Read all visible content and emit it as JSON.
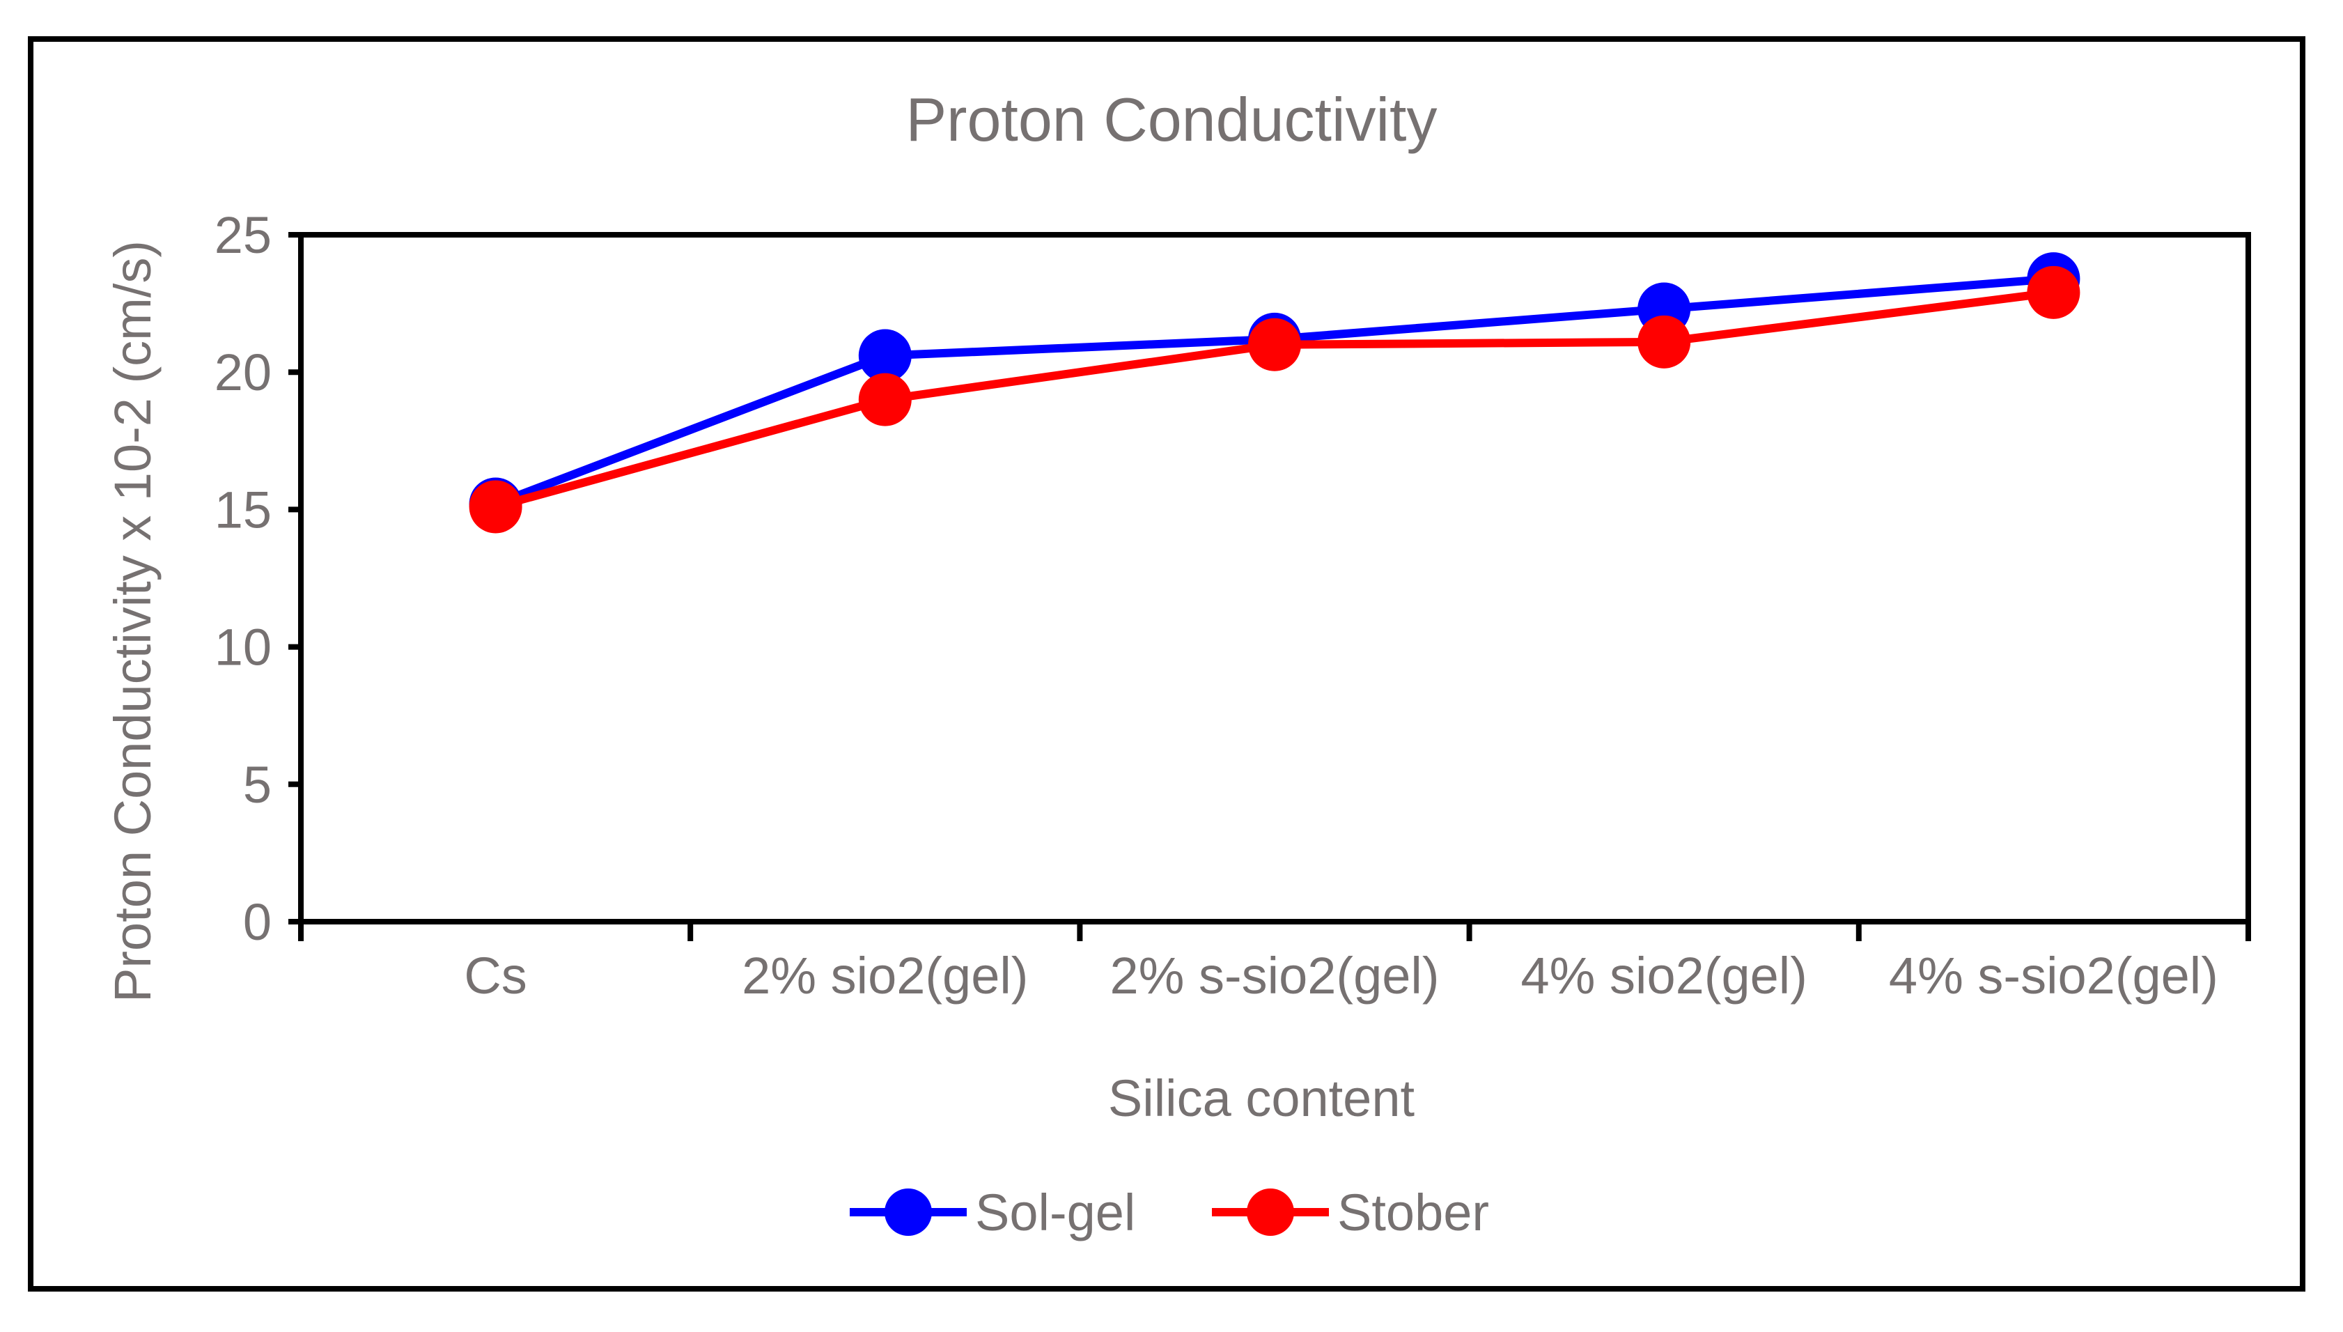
{
  "chart_data": {
    "type": "line",
    "title": "Proton Conductivity",
    "xlabel": "Silica content",
    "ylabel": "Proton Conductivity x 10-2 (cm/s)",
    "categories": [
      "Cs",
      "2% sio2(gel)",
      "2% s-sio2(gel)",
      "4% sio2(gel)",
      "4% s-sio2(gel)"
    ],
    "ylim": [
      0,
      25
    ],
    "yticks": [
      "0",
      "5",
      "10",
      "15",
      "20",
      "25"
    ],
    "legend_position": "bottom",
    "grid": false,
    "series": [
      {
        "name": "Sol-gel",
        "color": "#0000FF",
        "values": [
          15.2,
          20.6,
          21.2,
          22.3,
          23.4
        ]
      },
      {
        "name": "Stober",
        "color": "#FF0000",
        "values": [
          15.1,
          19.0,
          21.0,
          21.1,
          22.9
        ]
      }
    ]
  }
}
